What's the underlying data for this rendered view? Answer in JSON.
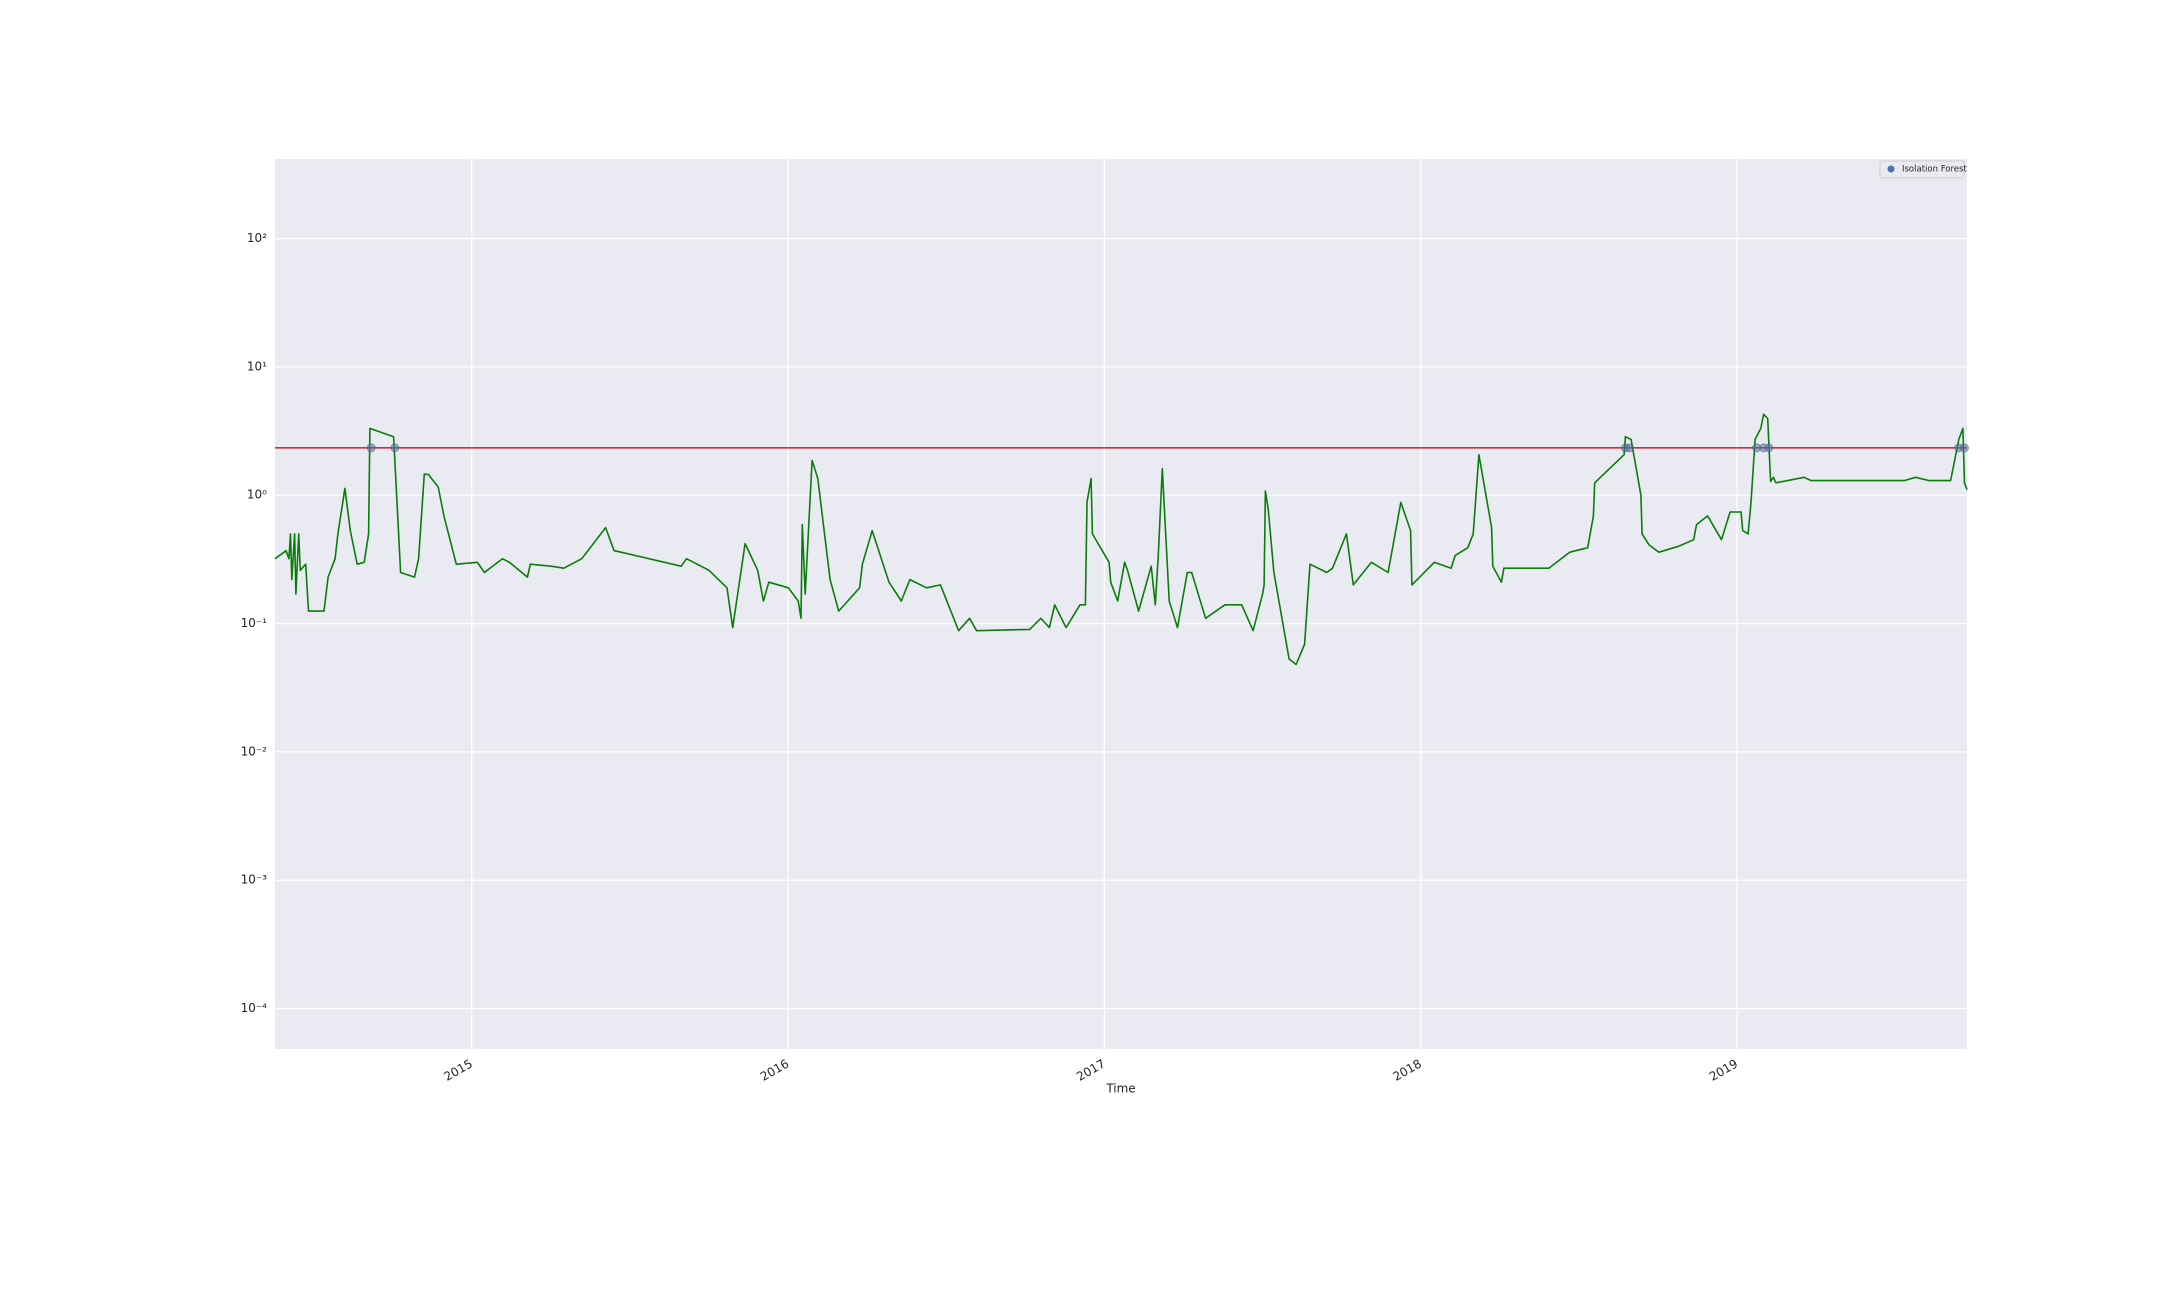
{
  "chart_data": {
    "type": "line",
    "xlabel": "Time",
    "ylog": true,
    "grid": true,
    "legend": "upper right",
    "xlim": [
      2014.378,
      2019.727
    ],
    "ylim": [
      4.84e-05,
      417
    ],
    "xticks": [
      2015,
      2016,
      2017,
      2018,
      2019
    ],
    "yticks": [
      {
        "value": 100,
        "label": "10²"
      },
      {
        "value": 10,
        "label": "10¹"
      },
      {
        "value": 1,
        "label": "10⁰"
      },
      {
        "value": 0.1,
        "label": "10⁻¹"
      },
      {
        "value": 0.01,
        "label": "10⁻²"
      },
      {
        "value": 0.001,
        "label": "10⁻³"
      },
      {
        "value": 0.0001,
        "label": "10⁻⁴"
      }
    ],
    "hlines": [
      {
        "value": 2.34,
        "color": "#c8323c"
      }
    ],
    "series": [
      {
        "type": "line",
        "color": "#0a7d0a",
        "x": [
          2014.378,
          2014.413,
          2014.422,
          2014.427,
          2014.431,
          2014.44,
          2014.444,
          2014.453,
          2014.458,
          2014.475,
          2014.484,
          2014.533,
          2014.546,
          2014.568,
          2014.577,
          2014.599,
          2014.616,
          2014.638,
          2014.66,
          2014.674,
          2014.678,
          2014.753,
          2014.766,
          2014.775,
          2014.819,
          2014.832,
          2014.85,
          2014.863,
          2014.894,
          2014.912,
          2014.951,
          2015.018,
          2015.04,
          2015.097,
          2015.119,
          2015.176,
          2015.185,
          2015.251,
          2015.291,
          2015.348,
          2015.423,
          2015.45,
          2015.472,
          2015.662,
          2015.679,
          2015.75,
          2015.807,
          2015.825,
          2015.864,
          2015.904,
          2015.922,
          2015.939,
          2016.001,
          2016.032,
          2016.041,
          2016.045,
          2016.054,
          2016.076,
          2016.094,
          2016.133,
          2016.16,
          2016.226,
          2016.235,
          2016.266,
          2016.319,
          2016.358,
          2016.385,
          2016.438,
          2016.482,
          2016.539,
          2016.574,
          2016.596,
          2016.764,
          2016.799,
          2016.826,
          2016.843,
          2016.879,
          2016.923,
          2016.94,
          2016.945,
          2016.958,
          2016.962,
          2017.015,
          2017.02,
          2017.042,
          2017.064,
          2017.073,
          2017.108,
          2017.148,
          2017.161,
          2017.17,
          2017.183,
          2017.205,
          2017.231,
          2017.262,
          2017.276,
          2017.32,
          2017.381,
          2017.434,
          2017.47,
          2017.5,
          2017.505,
          2017.509,
          2017.518,
          2017.536,
          2017.584,
          2017.606,
          2017.633,
          2017.65,
          2017.703,
          2017.721,
          2017.765,
          2017.787,
          2017.844,
          2017.897,
          2017.937,
          2017.968,
          2017.972,
          2018.043,
          2018.096,
          2018.109,
          2018.149,
          2018.166,
          2018.184,
          2018.224,
          2018.228,
          2018.255,
          2018.263,
          2018.405,
          2018.471,
          2018.528,
          2018.546,
          2018.55,
          2018.643,
          2018.647,
          2018.665,
          2018.696,
          2018.7,
          2018.722,
          2018.753,
          2018.815,
          2018.863,
          2018.872,
          2018.907,
          2018.951,
          2018.978,
          2019.013,
          2019.018,
          2019.035,
          2019.044,
          2019.057,
          2019.075,
          2019.084,
          2019.097,
          2019.106,
          2019.115,
          2019.123,
          2019.212,
          2019.234,
          2019.529,
          2019.564,
          2019.608,
          2019.675,
          2019.701,
          2019.714,
          2019.719,
          2019.727
        ],
        "values": [
          0.32,
          0.37,
          0.32,
          0.5,
          0.22,
          0.5,
          0.17,
          0.5,
          0.26,
          0.29,
          0.125,
          0.125,
          0.23,
          0.32,
          0.5,
          1.13,
          0.53,
          0.29,
          0.3,
          0.5,
          3.32,
          2.86,
          0.69,
          0.25,
          0.23,
          0.32,
          1.46,
          1.45,
          1.16,
          0.69,
          0.29,
          0.3,
          0.25,
          0.32,
          0.3,
          0.23,
          0.29,
          0.28,
          0.27,
          0.32,
          0.56,
          0.37,
          0.36,
          0.28,
          0.32,
          0.26,
          0.19,
          0.093,
          0.42,
          0.26,
          0.15,
          0.21,
          0.19,
          0.15,
          0.11,
          0.59,
          0.17,
          1.87,
          1.35,
          0.22,
          0.125,
          0.19,
          0.29,
          0.53,
          0.21,
          0.15,
          0.22,
          0.19,
          0.2,
          0.088,
          0.11,
          0.088,
          0.09,
          0.11,
          0.093,
          0.14,
          0.093,
          0.14,
          0.14,
          0.88,
          1.35,
          0.5,
          0.3,
          0.21,
          0.15,
          0.3,
          0.26,
          0.125,
          0.28,
          0.14,
          0.33,
          1.61,
          0.15,
          0.093,
          0.25,
          0.25,
          0.11,
          0.14,
          0.14,
          0.088,
          0.17,
          0.2,
          1.08,
          0.78,
          0.25,
          0.053,
          0.048,
          0.069,
          0.29,
          0.25,
          0.27,
          0.5,
          0.2,
          0.3,
          0.25,
          0.88,
          0.53,
          0.2,
          0.3,
          0.27,
          0.34,
          0.39,
          0.5,
          2.07,
          0.56,
          0.28,
          0.21,
          0.27,
          0.27,
          0.36,
          0.39,
          0.69,
          1.25,
          2.07,
          2.86,
          2.72,
          1.0,
          0.5,
          0.41,
          0.36,
          0.4,
          0.45,
          0.59,
          0.69,
          0.45,
          0.74,
          0.74,
          0.53,
          0.5,
          0.88,
          2.72,
          3.32,
          4.27,
          3.96,
          1.28,
          1.38,
          1.25,
          1.38,
          1.3,
          1.3,
          1.38,
          1.3,
          1.3,
          2.72,
          3.32,
          1.25,
          1.1
        ]
      },
      {
        "type": "scatter",
        "name": "Isolation Forest",
        "color": "#4c72b0",
        "x": [
          2014.682,
          2014.757,
          2018.647,
          2018.66,
          2019.062,
          2019.084,
          2019.101,
          2019.701,
          2019.719
        ],
        "values": [
          2.34,
          2.34,
          2.34,
          2.34,
          2.34,
          2.34,
          2.34,
          2.34,
          2.34
        ]
      }
    ]
  }
}
